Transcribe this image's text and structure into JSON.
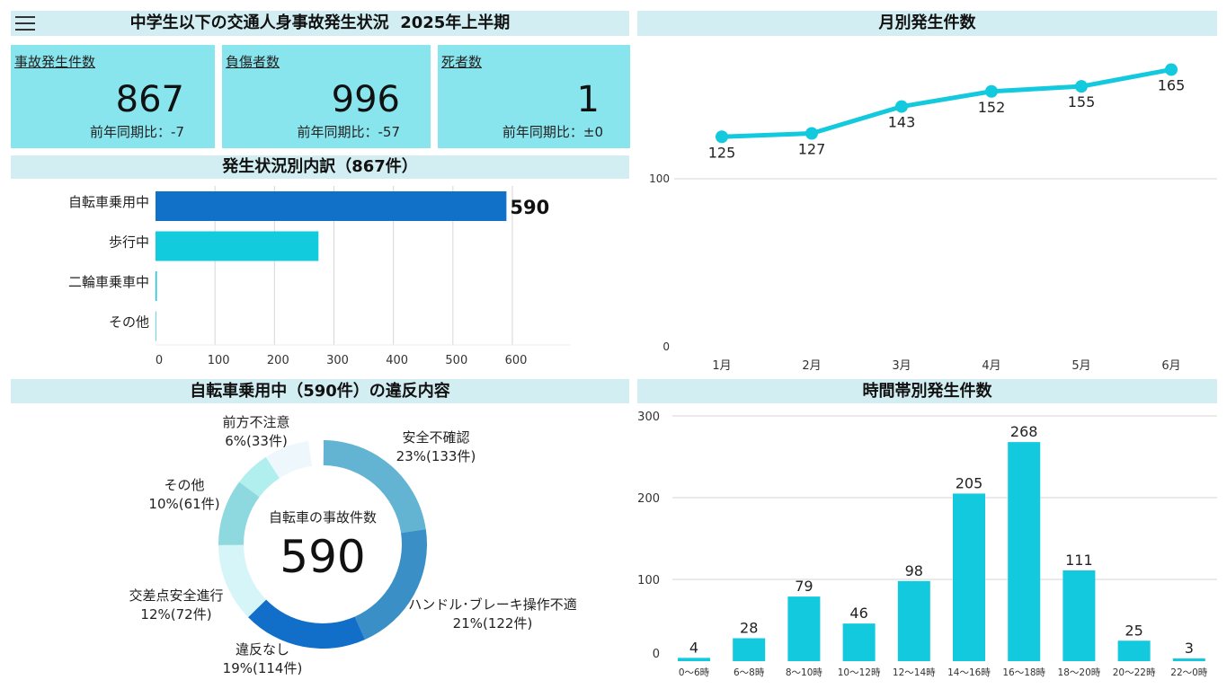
{
  "header": {
    "title": "中学生以下の交通人身事故発生状況  2025年上半期",
    "menu_icon": "hamburger-icon"
  },
  "kpis": [
    {
      "label": "事故発生件数",
      "value": "867",
      "compare": "前年同期比：-7"
    },
    {
      "label": "負傷者数",
      "value": "996",
      "compare": "前年同期比：-57"
    },
    {
      "label": "死者数",
      "value": "1",
      "compare": "前年同期比：±0"
    }
  ],
  "colors": {
    "header_bg": "#d3eef2",
    "card_bg": "#88e5ee",
    "accent": "#12c9dd",
    "blue": "#1170c8"
  },
  "chart_data": [
    {
      "type": "bar",
      "orientation": "horizontal",
      "title": "発生状況別内訳（867件）",
      "categories": [
        "自転車乗用中",
        "歩行中",
        "二輪車乗車中",
        "その他"
      ],
      "values": [
        590,
        274,
        2,
        1
      ],
      "colors": [
        "#1170c8",
        "#12cbdd",
        "#12cbdd",
        "#12cbdd"
      ],
      "data_labels": [
        "590",
        "",
        "",
        ""
      ],
      "xlim": [
        0,
        700
      ],
      "xticks": [
        0,
        100,
        200,
        300,
        400,
        500,
        600
      ],
      "grid": true
    },
    {
      "type": "line",
      "title": "月別発生件数",
      "categories": [
        "1月",
        "2月",
        "3月",
        "4月",
        "5月",
        "6月"
      ],
      "values": [
        125,
        127,
        143,
        152,
        155,
        165
      ],
      "ylim": [
        0,
        165
      ],
      "yticks": [
        0,
        100
      ],
      "color": "#12c9dd",
      "grid": true
    },
    {
      "type": "pie",
      "donut": true,
      "title": "自転車乗用中（590件）の違反内容",
      "center_label": "自転車の事故件数",
      "center_value": "590",
      "total": 590,
      "slices": [
        {
          "label": "安全不確認",
          "pct": "23%(133件)",
          "value": 133,
          "color": "#62b4d2"
        },
        {
          "label": "ハンドル･ブレーキ操作不適",
          "pct": "21%(122件)",
          "value": 122,
          "color": "#3a8fc7"
        },
        {
          "label": "違反なし",
          "pct": "19%(114件)",
          "value": 114,
          "color": "#116fc9"
        },
        {
          "label": "交差点安全進行",
          "pct": "12%(72件)",
          "value": 72,
          "color": "#d6f5f9"
        },
        {
          "label": "その他",
          "pct": "10%(61件)",
          "value": 61,
          "color": "#8ed9e0"
        },
        {
          "label": "前方不注意",
          "pct": "6%(33件)",
          "value": 33,
          "color": "#b1eeee"
        }
      ]
    },
    {
      "type": "bar",
      "title": "時間帯別発生件数",
      "categories": [
        "0～6時",
        "6～8時",
        "8～10時",
        "10～12時",
        "12～14時",
        "14～16時",
        "16～18時",
        "18～20時",
        "20～22時",
        "22～0時"
      ],
      "values": [
        4,
        28,
        79,
        46,
        98,
        205,
        268,
        111,
        25,
        3
      ],
      "ylim": [
        0,
        300
      ],
      "yticks": [
        0,
        100,
        200,
        300
      ],
      "color": "#12c9dd",
      "grid": true
    }
  ]
}
